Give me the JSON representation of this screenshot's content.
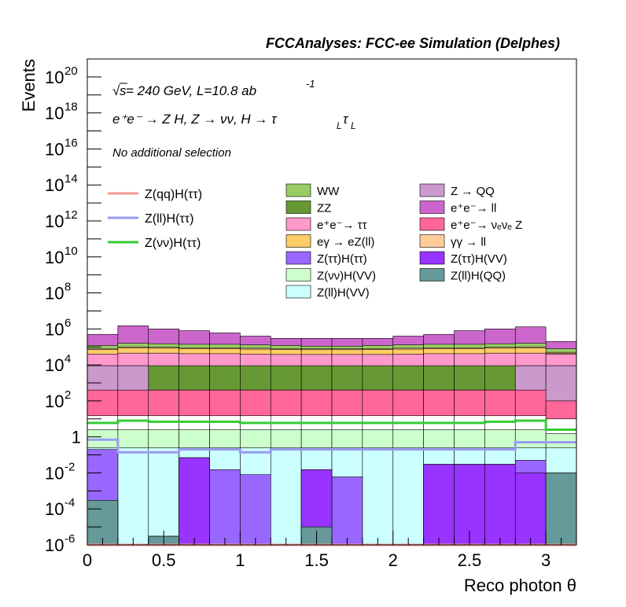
{
  "header": {
    "title": "FCCAnalyses: FCC-ee Simulation (Delphes)"
  },
  "annotations": {
    "sqrt_symbol": "√",
    "energy_s": "s",
    "energy": " = 240 GeV, L=10.8 ab",
    "energy_exp": "-1",
    "process": "e⁺e⁻ → Z H, Z → νν, H → τ",
    "process_sub1": "L",
    "process_tau": "τ",
    "process_sub2": "L",
    "selection": "No additional selection"
  },
  "colors": {
    "Z(qq)H(ττ)": "#f49a93",
    "Z(ll)H(ττ)": "#9b9bf4",
    "Z(νν)H(ττ)": "#33cc33",
    "WW": "#99cc66",
    "ZZ": "#669933",
    "e+e- → ττ": "#ff99cc",
    "eγ → eZ(ll)": "#ffcc66",
    "Z(ττ)H(ττ)": "#9966ff",
    "Z(νν)H(VV)": "#ccffcc",
    "Z(ll)H(VV)": "#ccffff",
    "Z → QQ": "#cc99cc",
    "e+e- → ll": "#cc66cc",
    "e+e- → νeνe Z": "#ff6699",
    "γγ → ll": "#ffcc99",
    "Z(ττ)H(VV)": "#9933ff",
    "Z(ll)H(QQ)": "#669999"
  },
  "chart_data": {
    "type": "bar",
    "stacked": true,
    "title": "FCCAnalyses: FCC-ee Simulation (Delphes)",
    "xlabel": "Reco photon θ",
    "ylabel": "Events",
    "xlim": [
      0,
      3.2
    ],
    "ylim": [
      1e-06,
      1e+21
    ],
    "ylog": true,
    "x_ticks": [
      "0",
      "0.5",
      "1",
      "1.5",
      "2",
      "2.5",
      "3"
    ],
    "y_ticks": [
      {
        "base": "10",
        "exp": "20",
        "value": 1e+20
      },
      {
        "base": "10",
        "exp": "18",
        "value": 1e+18
      },
      {
        "base": "10",
        "exp": "16",
        "value": 1e+16
      },
      {
        "base": "10",
        "exp": "14",
        "value": 100000000000000.0
      },
      {
        "base": "10",
        "exp": "12",
        "value": 1000000000000.0
      },
      {
        "base": "10",
        "exp": "10",
        "value": 10000000000.0
      },
      {
        "base": "10",
        "exp": "8",
        "value": 100000000.0
      },
      {
        "base": "10",
        "exp": "6",
        "value": 1000000.0
      },
      {
        "base": "10",
        "exp": "4",
        "value": 10000.0
      },
      {
        "base": "10",
        "exp": "2",
        "value": 100.0
      },
      {
        "base": "1",
        "exp": "",
        "value": 1
      },
      {
        "base": "10",
        "exp": "-2",
        "value": 0.01
      },
      {
        "base": "10",
        "exp": "-4",
        "value": 0.0001
      },
      {
        "base": "10",
        "exp": "-6",
        "value": 1e-06
      }
    ],
    "bin_edges": [
      0,
      0.2,
      0.4,
      0.6,
      0.8,
      1.0,
      1.2,
      1.4,
      1.6,
      1.8,
      2.0,
      2.2,
      2.4,
      2.6,
      2.8,
      3.0,
      3.2
    ],
    "stack_tops": [
      {
        "name": "Z(ll)H(QQ)",
        "color": "#669999",
        "values": [
          0.0003,
          1e-06,
          3e-06,
          1e-06,
          1e-06,
          1e-06,
          1e-06,
          1e-05,
          1e-06,
          1e-06,
          1e-06,
          1e-06,
          1e-06,
          1e-06,
          1e-06,
          0.01
        ]
      },
      {
        "name": "Z(ττ)H(VV)",
        "color": "#9933ff",
        "values": [
          0.0003,
          1e-06,
          3e-06,
          0.07,
          1e-06,
          1e-06,
          1e-06,
          0.015,
          1e-06,
          1e-06,
          1e-06,
          0.03,
          0.03,
          0.03,
          0.01,
          0.01
        ]
      },
      {
        "name": "Z(ττ)H(ττ)",
        "color": "#9966ff",
        "values": [
          0.2,
          1e-06,
          3e-06,
          0.07,
          0.015,
          0.008,
          1e-06,
          0.015,
          0.006,
          1e-06,
          1e-06,
          0.03,
          0.03,
          0.03,
          0.05,
          0.01
        ]
      },
      {
        "name": "Z(ll)H(VV)",
        "color": "#ccffff",
        "values": [
          0.25,
          0.25,
          0.25,
          0.25,
          0.25,
          0.25,
          0.25,
          0.25,
          0.25,
          0.25,
          0.25,
          0.25,
          0.25,
          0.25,
          0.25,
          0.25
        ]
      },
      {
        "name": "Z(νν)H(VV)",
        "color": "#ccffcc",
        "values": [
          2.5,
          2.5,
          2.5,
          2.5,
          2.5,
          2.5,
          2.5,
          2.5,
          2.5,
          2.5,
          2.5,
          2.5,
          2.5,
          2.5,
          2.5,
          1.5
        ]
      },
      {
        "name": "Z(νν)H(ττ)",
        "color": "#ffffff",
        "values": [
          15,
          15,
          15,
          15,
          15,
          15,
          15,
          15,
          15,
          15,
          15,
          15,
          15,
          15,
          15,
          10
        ]
      },
      {
        "name": "e+e- → νeνe Z",
        "color": "#ff6699",
        "values": [
          400,
          400,
          400,
          400,
          400,
          400,
          400,
          400,
          400,
          400,
          400,
          400,
          400,
          400,
          400,
          100
        ]
      },
      {
        "name": "Z → QQ",
        "color": "#cc99cc",
        "values": [
          9000,
          9000,
          400,
          400,
          400,
          400,
          400,
          400,
          400,
          400,
          400,
          400,
          400,
          400,
          9000,
          9000
        ]
      },
      {
        "name": "ZZ",
        "color": "#669933",
        "values": [
          9000,
          9000,
          9000,
          9000,
          9000,
          9000,
          9000,
          9000,
          9000,
          9000,
          9000,
          9000,
          9000,
          9000,
          9000,
          9000
        ]
      },
      {
        "name": "e+e- → ττ",
        "color": "#ff99cc",
        "values": [
          40000,
          45000,
          45000,
          42000,
          42000,
          40000,
          38000,
          38000,
          38000,
          38000,
          40000,
          42000,
          42000,
          45000,
          45000,
          40000
        ]
      },
      {
        "name": "eγ → eZ(ll)",
        "color": "#ffcc66",
        "values": [
          70000,
          90000,
          85000,
          80000,
          80000,
          75000,
          72000,
          70000,
          70000,
          72000,
          75000,
          80000,
          80000,
          85000,
          90000,
          45000
        ]
      },
      {
        "name": "γγ → ll",
        "color": "#ffcc99",
        "values": [
          80000,
          100000,
          95000,
          90000,
          90000,
          85000,
          80000,
          78000,
          78000,
          80000,
          85000,
          90000,
          90000,
          95000,
          100000,
          50000
        ]
      },
      {
        "name": "WW",
        "color": "#99cc66",
        "values": [
          120000,
          160000,
          150000,
          140000,
          140000,
          130000,
          120000,
          110000,
          110000,
          120000,
          130000,
          140000,
          140000,
          150000,
          160000,
          80000
        ]
      },
      {
        "name": "e+e- → ll",
        "color": "#cc66cc",
        "values": [
          500000,
          1500000,
          1000000,
          800000,
          600000,
          400000,
          300000,
          300000,
          300000,
          300000,
          400000,
          500000,
          800000,
          1000000,
          1300000,
          200000
        ]
      }
    ],
    "lines": [
      {
        "name": "Z(qq)H(ττ)",
        "color": "#f49a93",
        "values": [
          1e-06,
          1e-06,
          1e-06,
          1e-06,
          1e-06,
          1e-06,
          1e-06,
          1e-06,
          1e-06,
          1e-06,
          1e-06,
          1e-06,
          1e-06,
          1e-06,
          1e-06,
          1e-06
        ]
      },
      {
        "name": "Z(ll)H(ττ)",
        "color": "#9b9bf4",
        "values": [
          0.7,
          0.14,
          0.14,
          0.2,
          0.2,
          0.14,
          0.2,
          0.2,
          0.2,
          0.2,
          0.2,
          0.2,
          0.2,
          0.2,
          0.5,
          0.5
        ]
      },
      {
        "name": "Z(νν)H(ττ)",
        "color": "#33cc33",
        "values": [
          6,
          8,
          7,
          7,
          7,
          6,
          6,
          6,
          6,
          6,
          6,
          6,
          6,
          7,
          8,
          2.5
        ]
      }
    ],
    "legend_lines": [
      "Z(qq)H(ττ)",
      "Z(ll)H(ττ)",
      "Z(νν)H(ττ)"
    ],
    "legend_col1": [
      "WW",
      "ZZ",
      "e⁺e⁻→ ττ",
      "eγ → eZ(ll)",
      "Z(ττ)H(ττ)",
      "Z(νν)H(VV)",
      "Z(ll)H(VV)"
    ],
    "legend_col1_colors": [
      "#99cc66",
      "#669933",
      "#ff99cc",
      "#ffcc66",
      "#9966ff",
      "#ccffcc",
      "#ccffff"
    ],
    "legend_col2": [
      "Z → QQ",
      "e⁺e⁻→ ll",
      "e⁺e⁻→ νₑνₑ Z",
      "γγ → ll",
      "Z(ττ)H(VV)",
      "Z(ll)H(QQ)"
    ],
    "legend_col2_colors": [
      "#cc99cc",
      "#cc66cc",
      "#ff6699",
      "#ffcc99",
      "#9933ff",
      "#669999"
    ]
  }
}
